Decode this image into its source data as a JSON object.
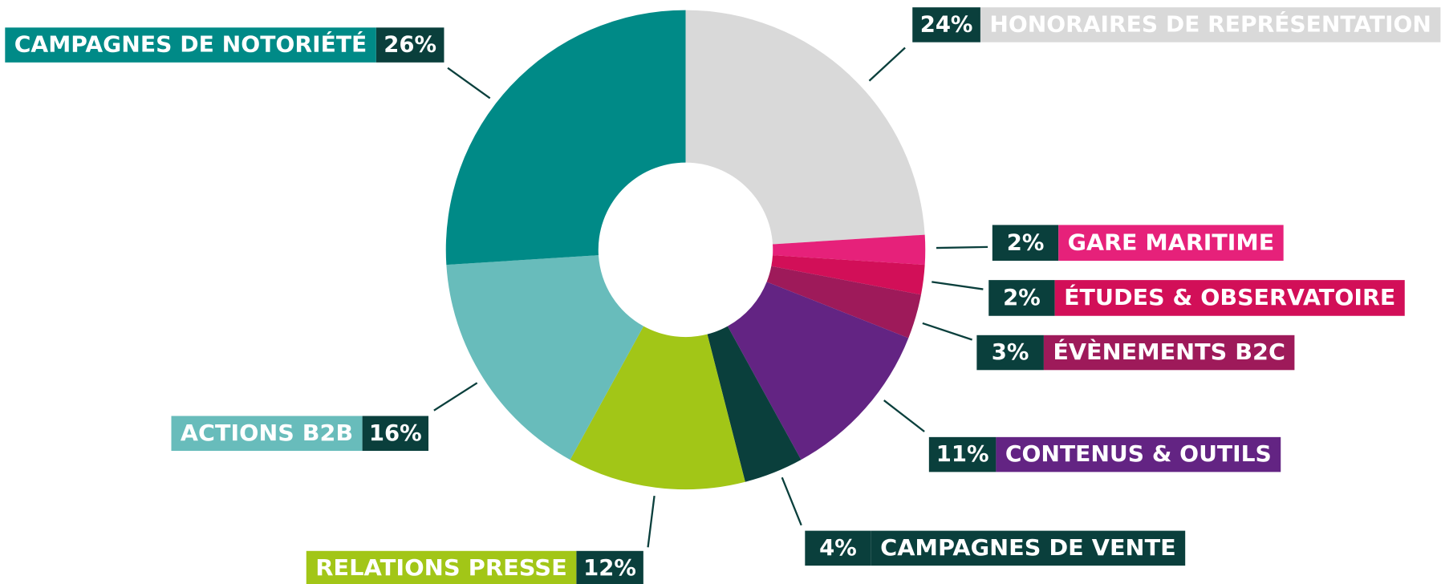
{
  "chart_data": {
    "type": "pie",
    "categories": [
      "HONORAIRES DE REPRÉSENTATION",
      "GARE MARITIME",
      "ÉTUDES & OBSERVATOIRE",
      "ÉVÈNEMENTS B2C",
      "CONTENUS & OUTILS",
      "CAMPAGNES DE VENTE",
      "RELATIONS PRESSE",
      "ACTIONS B2B",
      "CAMPAGNES DE NOTORIÉTÉ"
    ],
    "values": [
      24,
      2,
      2,
      3,
      11,
      4,
      12,
      16,
      26
    ],
    "value_labels": [
      "24%",
      "2%",
      "2%",
      "3%",
      "11%",
      "4%",
      "12%",
      "16%",
      "26%"
    ],
    "colors": [
      "#d9d9d9",
      "#e6217a",
      "#d20f58",
      "#9e1a5a",
      "#632483",
      "#0a3f3c",
      "#a2c617",
      "#68bcbb",
      "#008a87"
    ],
    "label_color": "#0a3f3c"
  }
}
